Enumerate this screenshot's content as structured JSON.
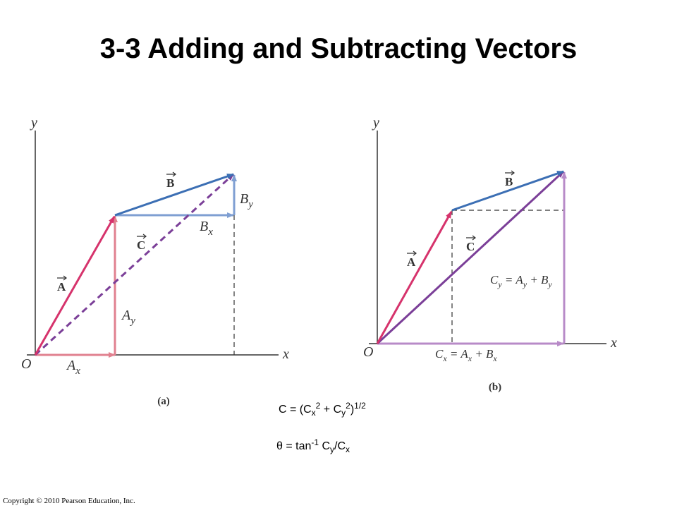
{
  "header": {
    "title": "3-3 Adding and Subtracting Vectors"
  },
  "panel_a": {
    "y_axis": "y",
    "x_axis": "x",
    "origin": "O",
    "vector_a": "A",
    "vector_b": "B",
    "vector_c": "C",
    "a_x": [
      "A",
      "x"
    ],
    "a_y": [
      "A",
      "y"
    ],
    "b_x": [
      "B",
      "x"
    ],
    "b_y": [
      "B",
      "y"
    ],
    "caption": "(a)"
  },
  "panel_b": {
    "y_axis": "y",
    "x_axis": "x",
    "origin": "O",
    "vector_a": "A",
    "vector_b": "B",
    "vector_c": "C",
    "c_y": [
      "C",
      "y",
      " = A",
      "y",
      " + B",
      "y"
    ],
    "c_x": [
      "C",
      "x",
      " = A",
      "x",
      " + B",
      "x"
    ],
    "caption": "(b)"
  },
  "formulas": {
    "magnitude": [
      "C = (C",
      "x",
      "2",
      " + C",
      "y",
      "2",
      ")",
      "1/2"
    ],
    "angle": [
      "θ = tan",
      "-1",
      " C",
      "y",
      "/C",
      "x"
    ]
  },
  "footer": {
    "copyright": "Copyright © 2010 Pearson Education, Inc."
  }
}
